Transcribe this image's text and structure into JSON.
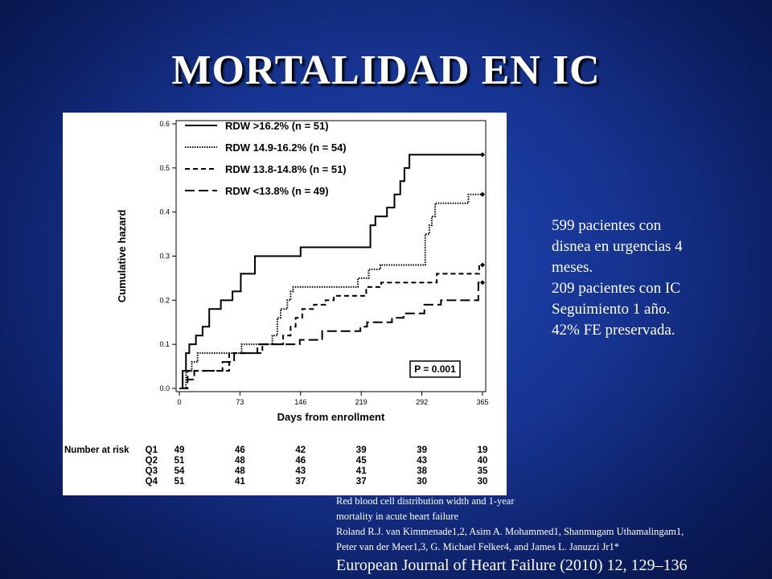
{
  "slide": {
    "title": "MORTALIDAD EN IC",
    "notes": [
      "599 pacientes con",
      "disnea en  urgencias 4",
      "meses.",
      "209 pacientes con IC",
      "Seguimiento 1 año.",
      "42% FE preservada."
    ],
    "reference_lines": [
      "Red blood cell distribution width and 1-year",
      "mortality in acute heart failure",
      "Roland R.J. van Kimmenade1,2, Asim A. Mohammed1, Shanmugam Uthamalingam1,",
      "Peter van der Meer1,3, G. Michael Felker4, and James L. Januzzi Jr1*"
    ],
    "journal": "European Journal of Heart Failure (2010) 12, 129–136"
  },
  "chart_data": {
    "type": "line",
    "step": true,
    "title": "",
    "xlabel": "Days from enrollment",
    "ylabel": "Cumulative hazard",
    "xlim": [
      0,
      365
    ],
    "ylim": [
      0,
      0.6
    ],
    "xticks": [
      "0",
      "73",
      "146",
      "219",
      "292",
      "365"
    ],
    "yticks": [
      "0.0",
      "0.1",
      "0.2",
      "0.3",
      "0.4",
      "0.5",
      "0.6"
    ],
    "grid": false,
    "legend_position": "top-left",
    "annotation": "P = 0.001",
    "series": [
      {
        "name": "RDW >16.2% (n = 51)",
        "dash": "solid",
        "x": [
          0,
          4,
          8,
          12,
          20,
          28,
          36,
          50,
          64,
          74,
          91,
          124,
          146,
          230,
          236,
          250,
          259,
          266,
          271,
          277,
          365
        ],
        "y": [
          0,
          0.04,
          0.08,
          0.1,
          0.12,
          0.14,
          0.18,
          0.2,
          0.22,
          0.26,
          0.3,
          0.3,
          0.32,
          0.37,
          0.39,
          0.41,
          0.44,
          0.47,
          0.5,
          0.53,
          0.53
        ]
      },
      {
        "name": "RDW 14.9-16.2% (n = 54)",
        "dash": "dotted",
        "x": [
          0,
          8,
          15,
          22,
          75,
          112,
          118,
          122,
          130,
          134,
          137,
          142,
          215,
          228,
          242,
          296,
          301,
          304,
          308,
          348,
          365
        ],
        "y": [
          0,
          0.04,
          0.06,
          0.08,
          0.1,
          0.12,
          0.16,
          0.18,
          0.2,
          0.22,
          0.23,
          0.23,
          0.25,
          0.27,
          0.28,
          0.35,
          0.37,
          0.39,
          0.42,
          0.44,
          0.44
        ]
      },
      {
        "name": "RDW 13.8-14.8% (n = 51)",
        "dash": "dashed",
        "x": [
          0,
          4,
          10,
          60,
          100,
          125,
          134,
          140,
          148,
          162,
          176,
          186,
          225,
          243,
          310,
          361,
          365
        ],
        "y": [
          0,
          0.02,
          0.04,
          0.08,
          0.1,
          0.12,
          0.14,
          0.16,
          0.18,
          0.19,
          0.2,
          0.21,
          0.23,
          0.24,
          0.26,
          0.28,
          0.28
        ]
      },
      {
        "name": "RDW <13.8% (n = 49)",
        "dash": "longdash",
        "x": [
          0,
          10,
          18,
          52,
          66,
          94,
          145,
          172,
          218,
          226,
          256,
          270,
          295,
          315,
          338,
          360,
          365
        ],
        "y": [
          0,
          0.02,
          0.04,
          0.06,
          0.08,
          0.1,
          0.11,
          0.13,
          0.14,
          0.15,
          0.16,
          0.17,
          0.19,
          0.2,
          0.2,
          0.24,
          0.24
        ]
      }
    ],
    "risk_table": {
      "header": "Number at risk",
      "rows": [
        {
          "label": "Q1",
          "values": [
            "49",
            "46",
            "42",
            "39",
            "39",
            "19"
          ]
        },
        {
          "label": "Q2",
          "values": [
            "51",
            "48",
            "46",
            "45",
            "43",
            "40"
          ]
        },
        {
          "label": "Q3",
          "values": [
            "54",
            "48",
            "43",
            "41",
            "38",
            "35"
          ]
        },
        {
          "label": "Q4",
          "values": [
            "51",
            "41",
            "37",
            "37",
            "30",
            "30"
          ]
        }
      ]
    },
    "colors": {
      "background": "#1a3aa0",
      "text": "#ffffff",
      "plot_ink": "#000000"
    }
  }
}
